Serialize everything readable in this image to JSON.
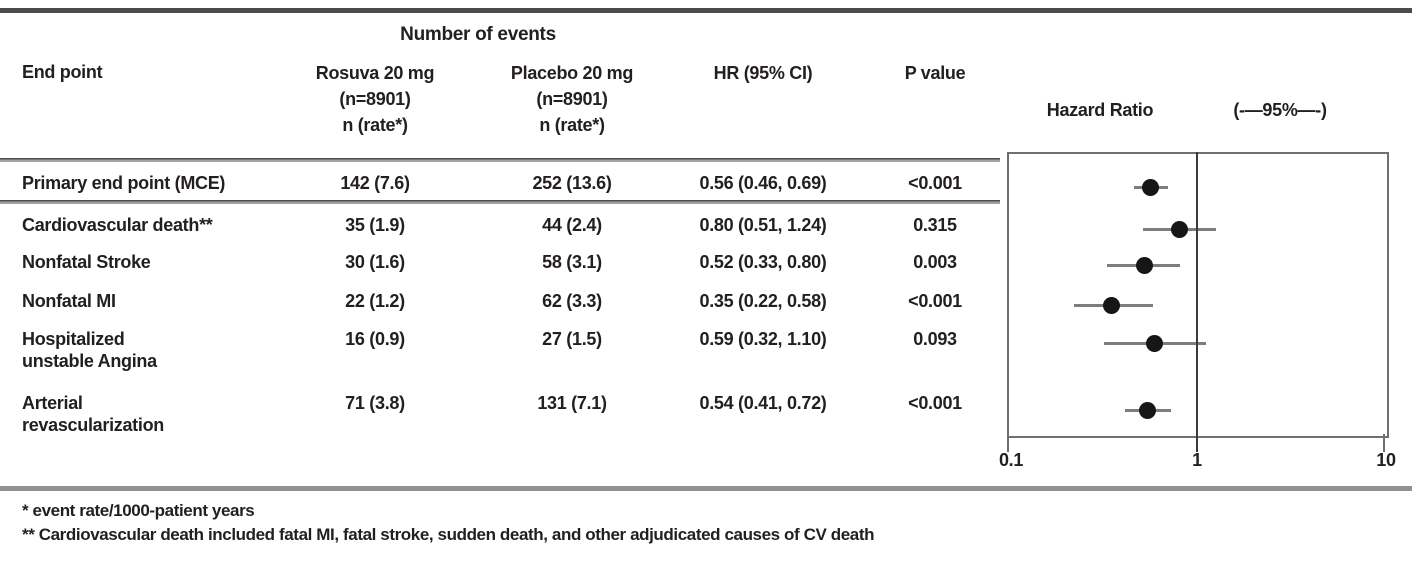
{
  "table": {
    "group_header": "Number of events",
    "endpoint_header": "End point",
    "rosuva_header": [
      "Rosuva 20 mg",
      "(n=8901)",
      "n (rate*)"
    ],
    "placebo_header": [
      "Placebo 20 mg",
      "(n=8901)",
      "n (rate*)"
    ],
    "hr_header": "HR (95% CI)",
    "p_header": "P value",
    "rows": [
      {
        "endpoint_lines": [
          "Primary end point (MCE)"
        ],
        "rosuva": "142 (7.6)",
        "placebo": "252 (13.6)",
        "hr": "0.56 (0.46, 0.69)",
        "p": "<0.001"
      },
      {
        "endpoint_lines": [
          "Cardiovascular death**"
        ],
        "rosuva": "35 (1.9)",
        "placebo": "44 (2.4)",
        "hr": "0.80 (0.51, 1.24)",
        "p": "0.315"
      },
      {
        "endpoint_lines": [
          "Nonfatal Stroke"
        ],
        "rosuva": "30 (1.6)",
        "placebo": "58 (3.1)",
        "hr": "0.52 (0.33, 0.80)",
        "p": "0.003"
      },
      {
        "endpoint_lines": [
          "Nonfatal MI"
        ],
        "rosuva": "22 (1.2)",
        "placebo": "62 (3.3)",
        "hr": "0.35 (0.22, 0.58)",
        "p": "<0.001"
      },
      {
        "endpoint_lines": [
          "Hospitalized",
          "unstable Angina"
        ],
        "rosuva": "16 (0.9)",
        "placebo": "27 (1.5)",
        "hr": "0.59 (0.32, 1.10)",
        "p": "0.093"
      },
      {
        "endpoint_lines": [
          "Arterial",
          "revascularization"
        ],
        "rosuva": "71 (3.8)",
        "placebo": "131 (7.1)",
        "hr": "0.54 (0.41, 0.72)",
        "p": "<0.001"
      }
    ]
  },
  "plot": {
    "title": "Hazard Ratio",
    "ci_header": "(-—95%—-)",
    "tick_labels": [
      "0.1",
      "1",
      "10"
    ]
  },
  "footnotes": [
    "* event rate/1000-patient years",
    "** Cardiovascular death included fatal MI, fatal stroke, sudden death, and other adjudicated causes of CV death"
  ],
  "colors": {
    "text": "#231f20",
    "marker": "#161616",
    "ci_line": "#7d7d7d",
    "top_rule": "#4b4b4b",
    "bottom_rule": "#8f9194",
    "plot_border": "#6f6f6f",
    "reference_line": "#3b3b3b"
  },
  "chart_data": {
    "type": "scatter",
    "subtype": "forest-plot",
    "title": "Hazard Ratio",
    "xscale": "log",
    "xlim": [
      0.1,
      10
    ],
    "xticks": [
      0.1,
      1,
      10
    ],
    "reference_line": 1,
    "legend_position": "none",
    "grid": false,
    "points": [
      {
        "label": "Primary end point (MCE)",
        "hr": 0.56,
        "ci": [
          0.46,
          0.69
        ],
        "p": "<0.001"
      },
      {
        "label": "Cardiovascular death",
        "hr": 0.8,
        "ci": [
          0.51,
          1.24
        ],
        "p": "0.315"
      },
      {
        "label": "Nonfatal Stroke",
        "hr": 0.52,
        "ci": [
          0.33,
          0.8
        ],
        "p": "0.003"
      },
      {
        "label": "Nonfatal MI",
        "hr": 0.35,
        "ci": [
          0.22,
          0.58
        ],
        "p": "<0.001"
      },
      {
        "label": "Hospitalized unstable Angina",
        "hr": 0.59,
        "ci": [
          0.32,
          1.1
        ],
        "p": "0.093"
      },
      {
        "label": "Arterial revascularization",
        "hr": 0.54,
        "ci": [
          0.41,
          0.72
        ],
        "p": "<0.001"
      }
    ]
  }
}
